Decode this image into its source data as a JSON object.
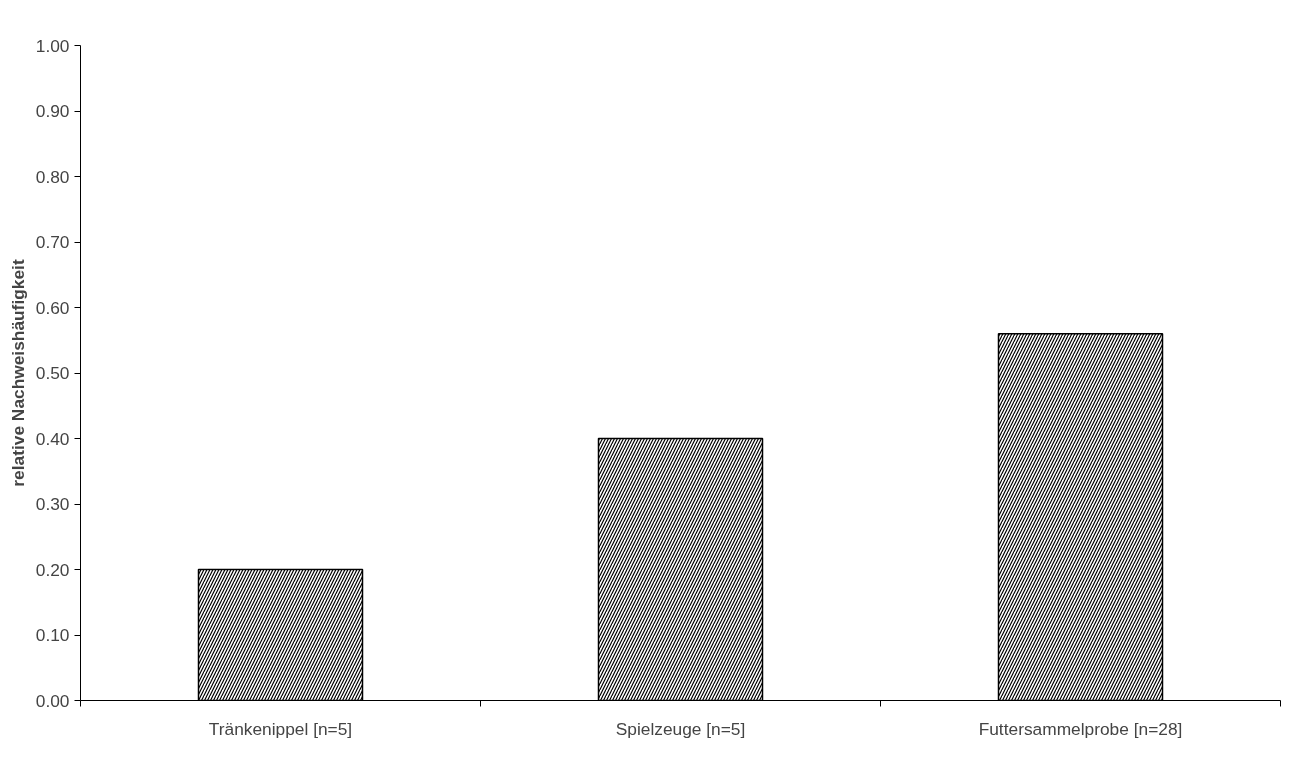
{
  "chart_data": {
    "type": "bar",
    "ylabel": "relative Nachweishäufigkeit",
    "categories": [
      "Tränkenippel [n=5]",
      "Spielzeuge [n=5]",
      "Futtersammelprobe [n=28]"
    ],
    "values": [
      0.2,
      0.4,
      0.56
    ],
    "color": "#000000",
    "ylim": [
      0,
      1
    ],
    "yticks": [
      {
        "value": 0,
        "label": "0.00"
      },
      {
        "value": 0.1,
        "label": "0.10"
      },
      {
        "value": 0.2,
        "label": "0.20"
      },
      {
        "value": 0.3,
        "label": "0.30"
      },
      {
        "value": 0.4,
        "label": "0.40"
      },
      {
        "value": 0.5,
        "label": "0.50"
      },
      {
        "value": 0.6,
        "label": "0.60"
      },
      {
        "value": 0.7,
        "label": "0.70"
      },
      {
        "value": 0.8,
        "label": "0.80"
      },
      {
        "value": 0.9,
        "label": "0.90"
      },
      {
        "value": 1,
        "label": "1.00"
      }
    ],
    "grid": false
  }
}
